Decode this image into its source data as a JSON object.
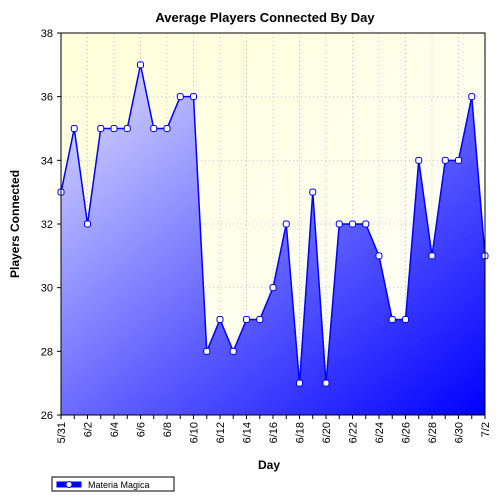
{
  "chart_data": {
    "type": "area",
    "title": "Average Players Connected By Day",
    "xlabel": "Day",
    "ylabel": "Players Connected",
    "ylim": [
      26,
      38
    ],
    "yticks": [
      26,
      28,
      30,
      32,
      34,
      36,
      38
    ],
    "grid": true,
    "legend": "bottom-left",
    "x": [
      "5/31",
      "6/1",
      "6/2",
      "6/3",
      "6/4",
      "6/5",
      "6/6",
      "6/7",
      "6/8",
      "6/9",
      "6/10",
      "6/11",
      "6/12",
      "6/13",
      "6/14",
      "6/15",
      "6/16",
      "6/17",
      "6/18",
      "6/19",
      "6/20",
      "6/21",
      "6/22",
      "6/23",
      "6/24",
      "6/25",
      "6/26",
      "6/27",
      "6/28",
      "6/29",
      "6/30",
      "7/1",
      "7/2"
    ],
    "xtick_labels": [
      "5/31",
      "6/2",
      "6/4",
      "6/6",
      "6/8",
      "6/10",
      "6/12",
      "6/14",
      "6/16",
      "6/18",
      "6/20",
      "6/22",
      "6/24",
      "6/26",
      "6/28",
      "6/30",
      "7/2"
    ],
    "series": [
      {
        "name": "Materia Magica",
        "values": [
          33,
          35,
          32,
          35,
          35,
          35,
          37,
          35,
          35,
          36,
          36,
          28,
          29,
          28,
          29,
          29,
          30,
          32,
          27,
          33,
          27,
          32,
          32,
          32,
          31,
          29,
          29,
          34,
          31,
          34,
          34,
          36,
          31
        ]
      }
    ],
    "colors": {
      "line": "#0000ff",
      "fill_light": "#d8d8ff",
      "fill_dark": "#0000ff",
      "plot_bg_light": "#ffffe0",
      "plot_bg": "#ffffe8",
      "marker_fill": "#ffffff"
    }
  }
}
